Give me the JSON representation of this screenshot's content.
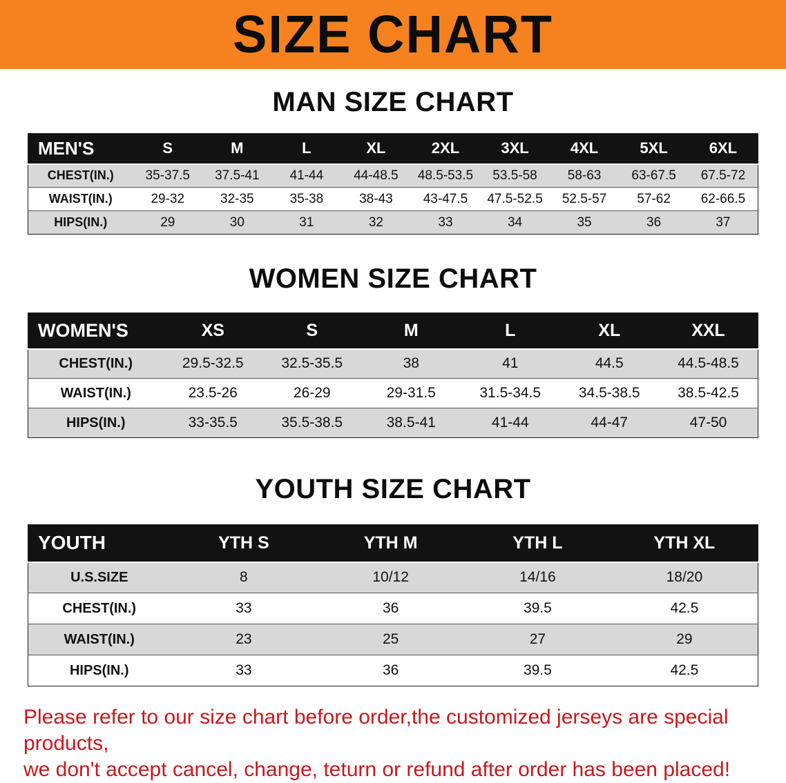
{
  "banner": {
    "title": "SIZE CHART"
  },
  "chart_data": [
    {
      "type": "table",
      "id": "mens",
      "title": "MAN SIZE CHART",
      "columns": [
        "MEN'S",
        "S",
        "M",
        "L",
        "XL",
        "2XL",
        "3XL",
        "4XL",
        "5XL",
        "6XL"
      ],
      "rows": [
        [
          "CHEST(IN.)",
          "35-37.5",
          "37.5-41",
          "41-44",
          "44-48.5",
          "48.5-53.5",
          "53.5-58",
          "58-63",
          "63-67.5",
          "67.5-72"
        ],
        [
          "WAIST(IN.)",
          "29-32",
          "32-35",
          "35-38",
          "38-43",
          "43-47.5",
          "47.5-52.5",
          "52.5-57",
          "57-62",
          "62-66.5"
        ],
        [
          "HIPS(IN.)",
          "29",
          "30",
          "31",
          "32",
          "33",
          "34",
          "35",
          "36",
          "37"
        ]
      ]
    },
    {
      "type": "table",
      "id": "womens",
      "title": "WOMEN SIZE CHART",
      "columns": [
        "WOMEN'S",
        "XS",
        "S",
        "M",
        "L",
        "XL",
        "XXL"
      ],
      "rows": [
        [
          "CHEST(IN.)",
          "29.5-32.5",
          "32.5-35.5",
          "38",
          "41",
          "44.5",
          "44.5-48.5"
        ],
        [
          "WAIST(IN.)",
          "23.5-26",
          "26-29",
          "29-31.5",
          "31.5-34.5",
          "34.5-38.5",
          "38.5-42.5"
        ],
        [
          "HIPS(IN.)",
          "33-35.5",
          "35.5-38.5",
          "38.5-41",
          "41-44",
          "44-47",
          "47-50"
        ]
      ]
    },
    {
      "type": "table",
      "id": "youth",
      "title": "YOUTH SIZE CHART",
      "columns": [
        "YOUTH",
        "YTH S",
        "YTH M",
        "YTH L",
        "YTH XL"
      ],
      "rows": [
        [
          "U.S.SIZE",
          "8",
          "10/12",
          "14/16",
          "18/20"
        ],
        [
          "CHEST(IN.)",
          "33",
          "36",
          "39.5",
          "42.5"
        ],
        [
          "WAIST(IN.)",
          "23",
          "25",
          "27",
          "29"
        ],
        [
          "HIPS(IN.)",
          "33",
          "36",
          "39.5",
          "42.5"
        ]
      ]
    }
  ],
  "note": {
    "line1": "Please refer to our size chart before order,the customized jerseys are special products,",
    "line2": "we don't accept cancel, change, teturn or refund after order has been placed!"
  },
  "colors": {
    "banner-bg": "#f6821f",
    "header-bg": "#121212",
    "row-alt": "#d8d8d8",
    "note-red": "#c8181c"
  }
}
